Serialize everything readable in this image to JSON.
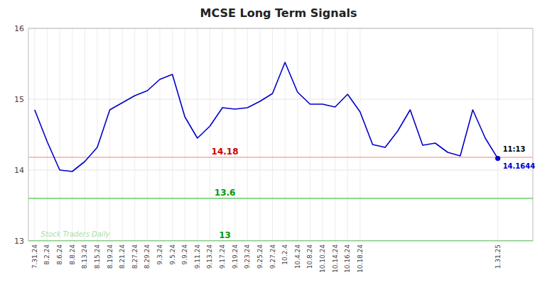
{
  "chart_data": {
    "type": "line",
    "title": "MCSE Long Term Signals",
    "categories": [
      "7.31.24",
      "8.2.24",
      "8.6.24",
      "8.8.24",
      "8.13.24",
      "8.15.24",
      "8.19.24",
      "8.21.24",
      "8.27.24",
      "8.29.24",
      "9.3.24",
      "9.5.24",
      "9.9.24",
      "9.11.24",
      "9.13.24",
      "9.17.24",
      "9.19.24",
      "9.23.24",
      "9.25.24",
      "9.27.24",
      "10.2.4",
      "10.4.24",
      "10.8.24",
      "10.10.24",
      "10.14.24",
      "10.16.24",
      "10.18.24",
      null,
      null,
      null,
      null,
      null,
      null,
      null,
      null,
      null,
      null,
      "1.31.25"
    ],
    "series": [
      {
        "color": "#0000cc",
        "values": [
          14.85,
          14.4,
          14.0,
          13.98,
          14.12,
          14.32,
          14.85,
          14.95,
          15.05,
          15.12,
          15.28,
          15.35,
          14.75,
          14.45,
          14.62,
          14.88,
          14.86,
          14.88,
          14.97,
          15.08,
          15.52,
          15.1,
          14.93,
          14.93,
          14.89,
          15.07,
          14.82,
          14.36,
          14.32,
          14.55,
          14.85,
          14.35,
          14.38,
          14.25,
          14.2,
          14.85,
          14.45,
          14.1644
        ],
        "value_labels": [
          null,
          null,
          null,
          null,
          null,
          null,
          null,
          null,
          null,
          null,
          null,
          null,
          null,
          null,
          null,
          null,
          null,
          null,
          null,
          null,
          null,
          null,
          null,
          null,
          null,
          null,
          null,
          null,
          null,
          null,
          null,
          null,
          null,
          null,
          null,
          null,
          null,
          "14.1644"
        ]
      }
    ],
    "hlines": [
      {
        "value": 14.18,
        "label": "14.18",
        "color": "#ffaaaa",
        "label_color": "#cc0000"
      },
      {
        "value": 13.6,
        "label": "13.6",
        "color": "#66cc66",
        "label_color": "#009900"
      },
      {
        "value": 13.0,
        "label": "13",
        "color": "#66cc66",
        "label_color": "#009900"
      }
    ],
    "annotations": [
      {
        "text": "11:13",
        "point": 37,
        "color": "#000000"
      },
      {
        "text": "Stock Traders Daily",
        "color": "#aaddaa"
      }
    ],
    "ylim": [
      13.0,
      16.0
    ],
    "yticks": [
      13,
      14,
      15,
      16
    ],
    "grid": true
  }
}
